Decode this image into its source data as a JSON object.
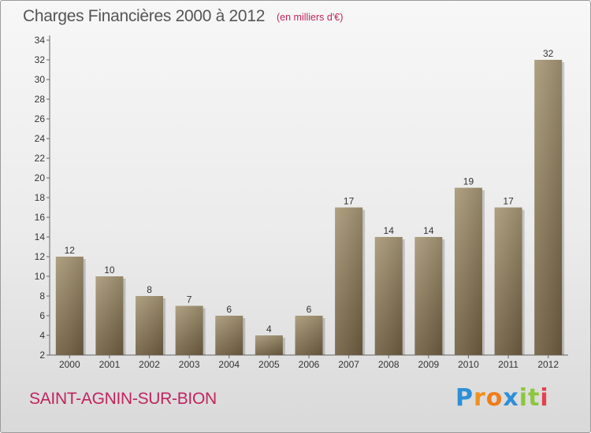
{
  "header": {
    "title": "Charges Financières 2000 à 2012",
    "subtitle": "(en milliers d'€)"
  },
  "footer": {
    "commune": "SAINT-AGNIN-SUR-BION",
    "logo_text": "Proxiti",
    "logo_colors": [
      "#2e8fd8",
      "#f0901e",
      "#ef7d1a",
      "#2e8fd8",
      "#8dc63f",
      "#8dc63f",
      "#e6404f"
    ]
  },
  "chart_data": {
    "type": "bar",
    "title": "Charges Financières 2000 à 2012",
    "subtitle": "(en milliers d'€)",
    "xlabel": "",
    "ylabel": "",
    "categories": [
      "2000",
      "2001",
      "2002",
      "2003",
      "2004",
      "2005",
      "2006",
      "2007",
      "2008",
      "2009",
      "2010",
      "2011",
      "2012"
    ],
    "values": [
      12,
      10,
      8,
      7,
      6,
      4,
      6,
      17,
      14,
      14,
      19,
      17,
      32
    ],
    "data_labels": [
      "12",
      "10",
      "8",
      "7",
      "6",
      "4",
      "6",
      "17",
      "14",
      "14",
      "19",
      "17",
      "32"
    ],
    "ylim": [
      2,
      34
    ],
    "yticks": [
      2,
      4,
      6,
      8,
      10,
      12,
      14,
      16,
      18,
      20,
      22,
      24,
      26,
      28,
      30,
      32,
      34
    ],
    "grid": false,
    "legend": "none",
    "bar_color_top": "#a69674",
    "bar_color_bottom": "#6e5d40"
  }
}
